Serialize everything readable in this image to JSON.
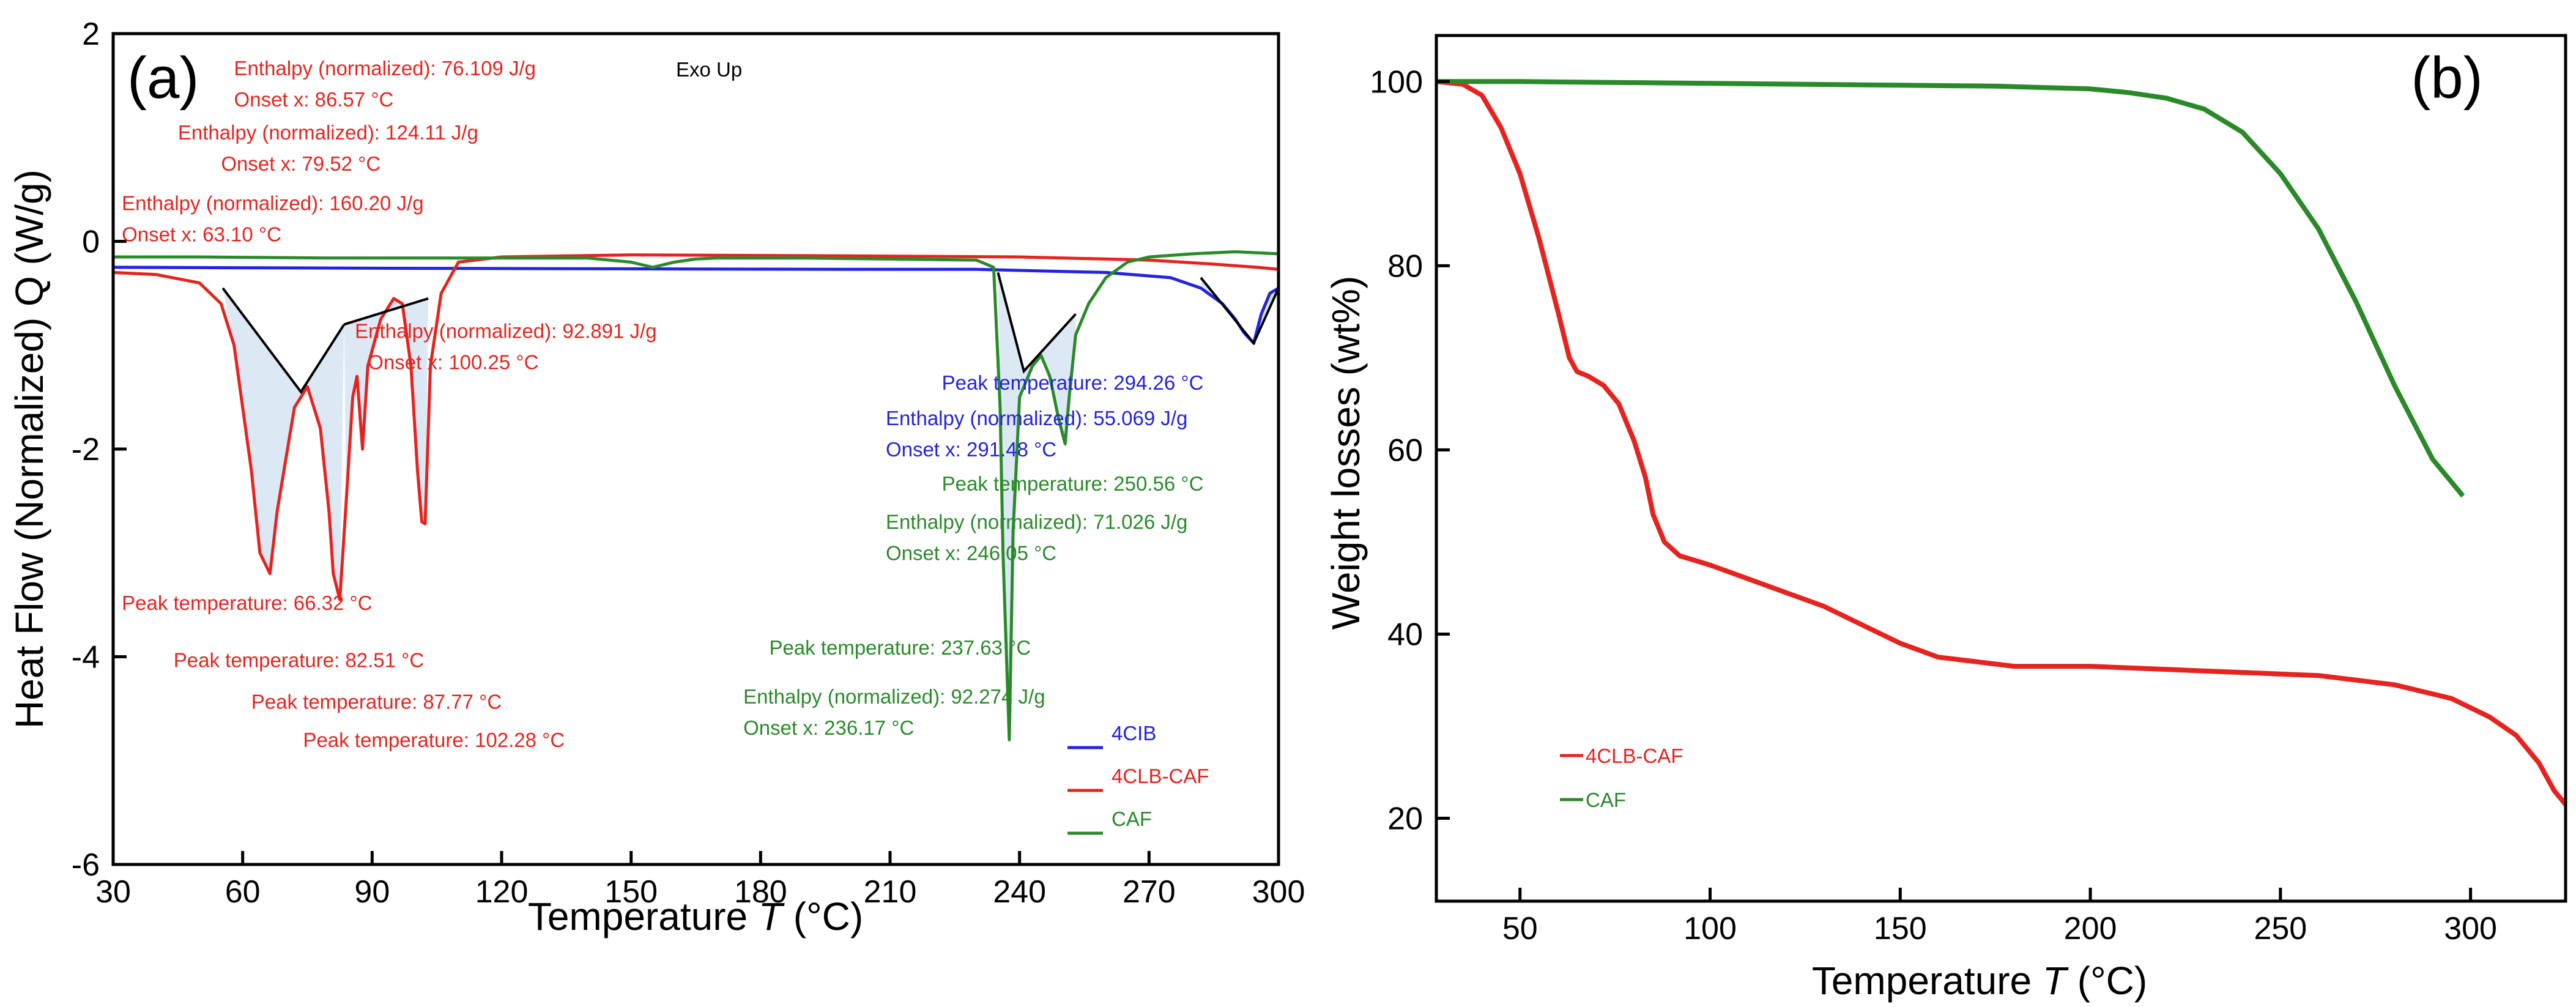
{
  "colors": {
    "red": "#e52420",
    "green": "#2a8a2a",
    "blue": "#2323e0",
    "fill": "#dce9f5",
    "black": "#000000"
  },
  "chart_data": [
    {
      "panel": "(a)",
      "type": "line",
      "xlabel": "Temperature",
      "xlabel_italic": "T",
      "xlabel_unit": "(°C)",
      "ylabel": "Heat Flow (Normalized) Q (W/g)",
      "xlim": [
        30,
        300
      ],
      "ylim": [
        -6,
        2
      ],
      "xticks": [
        30,
        60,
        90,
        120,
        150,
        180,
        210,
        240,
        270,
        300
      ],
      "yticks": [
        -6,
        -4,
        -2,
        0,
        2
      ],
      "note": "Exo Up",
      "series": [
        {
          "name": "4CIB",
          "color": "blue",
          "x": [
            30,
            100,
            200,
            230,
            260,
            275,
            282,
            287,
            290,
            292,
            294.26,
            296,
            298,
            300
          ],
          "y": [
            -0.25,
            -0.26,
            -0.27,
            -0.27,
            -0.3,
            -0.35,
            -0.45,
            -0.6,
            -0.75,
            -0.88,
            -0.98,
            -0.7,
            -0.5,
            -0.45
          ]
        },
        {
          "name": "4CLB-CAF",
          "color": "red",
          "x": [
            30,
            40,
            50,
            55,
            58,
            62,
            64,
            66.32,
            68,
            72,
            75,
            78,
            80,
            81,
            82.51,
            84,
            85.5,
            86.5,
            87.77,
            89,
            92,
            95,
            97,
            99,
            100.5,
            101.5,
            102.28,
            103.5,
            106,
            110,
            120,
            150,
            200,
            240,
            270,
            285,
            295,
            300
          ],
          "y": [
            -0.3,
            -0.32,
            -0.4,
            -0.6,
            -1.0,
            -2.2,
            -3.0,
            -3.2,
            -2.6,
            -1.6,
            -1.4,
            -1.8,
            -2.6,
            -3.2,
            -3.45,
            -2.5,
            -1.5,
            -1.3,
            -2.0,
            -1.2,
            -0.75,
            -0.55,
            -0.6,
            -1.2,
            -2.2,
            -2.7,
            -2.72,
            -1.2,
            -0.5,
            -0.2,
            -0.15,
            -0.13,
            -0.14,
            -0.15,
            -0.18,
            -0.22,
            -0.25,
            -0.27
          ]
        },
        {
          "name": "CAF",
          "color": "green",
          "x": [
            30,
            50,
            80,
            110,
            140,
            150,
            155,
            160,
            165,
            170,
            190,
            210,
            230,
            234,
            235.5,
            236.17,
            237.63,
            238.5,
            240,
            243,
            245,
            247,
            249,
            250.56,
            251.5,
            253,
            256,
            260,
            265,
            270,
            280,
            290,
            300
          ],
          "y": [
            -0.15,
            -0.15,
            -0.16,
            -0.16,
            -0.16,
            -0.2,
            -0.25,
            -0.2,
            -0.17,
            -0.16,
            -0.16,
            -0.17,
            -0.18,
            -0.25,
            -1.6,
            -3.0,
            -4.8,
            -2.8,
            -1.5,
            -1.2,
            -1.1,
            -1.3,
            -1.7,
            -1.95,
            -1.5,
            -0.9,
            -0.6,
            -0.35,
            -0.2,
            -0.15,
            -0.12,
            -0.1,
            -0.12
          ]
        }
      ],
      "baselines": [
        {
          "color": "black",
          "x": [
            55.4,
            73.5,
            83.5
          ],
          "y": [
            -0.45,
            -1.45,
            -0.8
          ]
        },
        {
          "color": "black",
          "x": [
            83.5,
            103
          ],
          "y": [
            -0.8,
            -0.55
          ]
        },
        {
          "color": "black",
          "x": [
            235,
            241,
            253
          ],
          "y": [
            -0.3,
            -1.25,
            -0.7
          ]
        },
        {
          "color": "black",
          "x": [
            282,
            294.26,
            300
          ],
          "y": [
            -0.35,
            -0.98,
            -0.45
          ]
        }
      ],
      "annotations": [
        {
          "text": "Enthalpy (normalized): 76.109 J/g",
          "color": "red",
          "x": 58,
          "y": 1.6
        },
        {
          "text": "Onset x: 86.57 °C",
          "color": "red",
          "x": 58,
          "y": 1.3
        },
        {
          "text": "Enthalpy (normalized): 124.11 J/g",
          "color": "red",
          "x": 45,
          "y": 0.98
        },
        {
          "text": "Onset x: 79.52 °C",
          "color": "red",
          "x": 55,
          "y": 0.68
        },
        {
          "text": "Enthalpy (normalized): 160.20 J/g",
          "color": "red",
          "x": 32,
          "y": 0.3
        },
        {
          "text": "Onset x: 63.10 °C",
          "color": "red",
          "x": 32,
          "y": 0.0
        },
        {
          "text": "Enthalpy (normalized): 92.891 J/g",
          "color": "red",
          "x": 86,
          "y": -0.93
        },
        {
          "text": "Onset x: 100.25 °C",
          "color": "red",
          "x": 89,
          "y": -1.23
        },
        {
          "text": "Peak temperature: 66.32 °C",
          "color": "red",
          "x": 32,
          "y": -3.55
        },
        {
          "text": "Peak temperature: 82.51 °C",
          "color": "red",
          "x": 44,
          "y": -4.1
        },
        {
          "text": "Peak temperature: 87.77 °C",
          "color": "red",
          "x": 62,
          "y": -4.5
        },
        {
          "text": "Peak temperature: 102.28 °C",
          "color": "red",
          "x": 74,
          "y": -4.87
        },
        {
          "text": "Peak temperature: 294.26 °C",
          "color": "blue",
          "x": 222,
          "y": -1.43
        },
        {
          "text": "Enthalpy (normalized): 55.069 J/g",
          "color": "blue",
          "x": 209,
          "y": -1.77
        },
        {
          "text": "Onset x: 291.48 °C",
          "color": "blue",
          "x": 209,
          "y": -2.07
        },
        {
          "text": "Peak temperature: 250.56 °C",
          "color": "green",
          "x": 222,
          "y": -2.4
        },
        {
          "text": "Enthalpy (normalized): 71.026 J/g",
          "color": "green",
          "x": 209,
          "y": -2.77
        },
        {
          "text": "Onset x: 246.05 °C",
          "color": "green",
          "x": 209,
          "y": -3.07
        },
        {
          "text": "Peak temperature: 237.63 °C",
          "color": "green",
          "x": 182,
          "y": -3.98
        },
        {
          "text": "Enthalpy (normalized): 92.274 J/g",
          "color": "green",
          "x": 176,
          "y": -4.45
        },
        {
          "text": "Onset x: 236.17 °C",
          "color": "green",
          "x": 176,
          "y": -4.75
        }
      ],
      "legend": [
        {
          "name": "4CIB",
          "color": "blue"
        },
        {
          "name": "4CLB-CAF",
          "color": "red"
        },
        {
          "name": "CAF",
          "color": "green"
        }
      ],
      "legend_position": "bottom-right"
    },
    {
      "panel": "(b)",
      "type": "line",
      "xlabel": "Temperature",
      "xlabel_italic": "T",
      "xlabel_unit": "(°C)",
      "ylabel": "Weight losses (wt%)",
      "xlim": [
        28,
        325
      ],
      "ylim": [
        11,
        105
      ],
      "xticks": [
        50,
        100,
        150,
        200,
        250,
        300
      ],
      "yticks": [
        20,
        40,
        60,
        80,
        100
      ],
      "series": [
        {
          "name": "4CLB-CAF",
          "color": "red",
          "x": [
            28,
            35,
            40,
            45,
            50,
            55,
            60,
            63,
            65,
            68,
            72,
            76,
            80,
            83,
            85,
            88,
            92,
            100,
            110,
            120,
            130,
            140,
            150,
            160,
            170,
            180,
            200,
            230,
            260,
            280,
            295,
            305,
            312,
            318,
            322,
            325
          ],
          "y": [
            100,
            99.7,
            98.5,
            95,
            90,
            83,
            75,
            70,
            68.5,
            68,
            67,
            65,
            61,
            57,
            53,
            50,
            48.5,
            47.5,
            46,
            44.5,
            43,
            41,
            39,
            37.5,
            37,
            36.5,
            36.5,
            36,
            35.5,
            34.5,
            33,
            31,
            29,
            26,
            23,
            21.5
          ]
        },
        {
          "name": "CAF",
          "color": "green",
          "x": [
            28,
            50,
            100,
            150,
            175,
            200,
            210,
            220,
            230,
            240,
            250,
            260,
            270,
            280,
            290,
            298
          ],
          "y": [
            100,
            100,
            99.8,
            99.6,
            99.5,
            99.2,
            98.8,
            98.2,
            97,
            94.5,
            90,
            84,
            76,
            67,
            59,
            55
          ]
        }
      ],
      "legend": [
        {
          "name": "4CLB-CAF",
          "color": "red"
        },
        {
          "name": "CAF",
          "color": "green"
        }
      ],
      "legend_position": "bottom-left"
    }
  ]
}
